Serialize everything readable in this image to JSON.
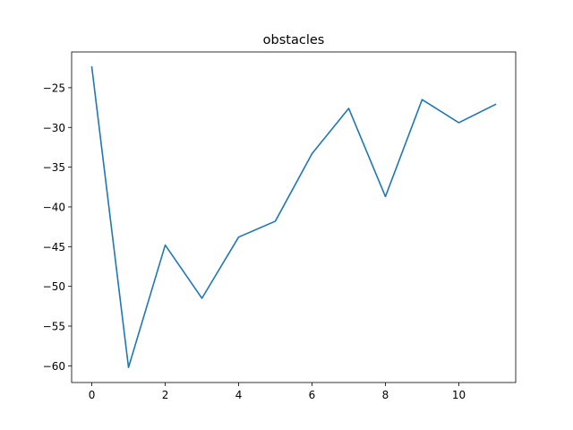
{
  "chart_data": {
    "type": "line",
    "title": "obstacles",
    "xlabel": "",
    "ylabel": "",
    "x": [
      0,
      1,
      2,
      3,
      4,
      5,
      6,
      7,
      8,
      9,
      10,
      11
    ],
    "series": [
      {
        "color": "#1f77b4",
        "values": [
          -22.4,
          -60.2,
          -44.8,
          -51.5,
          -43.8,
          -41.8,
          -33.3,
          -27.6,
          -38.7,
          -26.5,
          -29.4,
          -27.1
        ]
      }
    ],
    "xlim": [
      -0.55,
      11.55
    ],
    "ylim": [
      -62.1,
      -20.5
    ],
    "xticks": [
      0,
      2,
      4,
      6,
      8,
      10
    ],
    "xtick_labels": [
      "0",
      "2",
      "4",
      "6",
      "8",
      "10"
    ],
    "yticks": [
      -60,
      -55,
      -50,
      -45,
      -40,
      -35,
      -30,
      -25
    ],
    "ytick_labels": [
      "−60",
      "−55",
      "−50",
      "−45",
      "−40",
      "−35",
      "−30",
      "−25"
    ],
    "grid": false,
    "legend": "none"
  }
}
